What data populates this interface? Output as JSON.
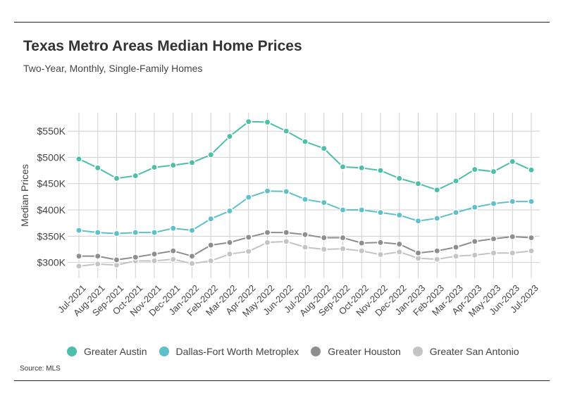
{
  "header": {
    "title": "Texas Metro Areas Median Home Prices",
    "subtitle": "Two-Year, Monthly, Single-Family Homes"
  },
  "footer": {
    "source": "Source: MLS"
  },
  "chart_data": {
    "type": "line",
    "ylabel": "Median Prices",
    "xlabel": "",
    "ylim": [
      270000,
      585000
    ],
    "y_ticks": [
      300000,
      350000,
      400000,
      450000,
      500000,
      550000
    ],
    "y_tick_labels": [
      "$300K",
      "$350K",
      "$400K",
      "$450K",
      "$500K",
      "$550K"
    ],
    "grid": true,
    "legend_position": "bottom",
    "categories": [
      "Jul-2021",
      "Aug-2021",
      "Sep-2021",
      "Oct-2021",
      "Nov-2021",
      "Dec-2021",
      "Jan-2022",
      "Feb-2022",
      "Mar-2022",
      "Apr-2022",
      "May-2022",
      "Jun-2022",
      "Jul-2022",
      "Aug-2022",
      "Sep-2022",
      "Oct-2022",
      "Nov-2022",
      "Dec-2022",
      "Jan-2023",
      "Feb-2023",
      "Mar-2023",
      "Apr-2023",
      "May-2023",
      "Jun-2023",
      "Jul-2023"
    ],
    "series": [
      {
        "name": "Greater Austin",
        "color": "#4dbfa8",
        "values": [
          497000,
          480000,
          460000,
          465000,
          481000,
          485000,
          490000,
          505000,
          540000,
          568000,
          567000,
          550000,
          530000,
          517000,
          482000,
          480000,
          475000,
          460000,
          450000,
          438000,
          455000,
          477000,
          473000,
          492000,
          476000
        ]
      },
      {
        "name": "Dallas-Fort Worth Metroplex",
        "color": "#5ec0cb",
        "values": [
          361000,
          357000,
          355000,
          357000,
          357000,
          365000,
          361000,
          383000,
          398000,
          424000,
          436000,
          435000,
          420000,
          414000,
          400000,
          400000,
          395000,
          390000,
          379000,
          384000,
          395000,
          405000,
          412000,
          416000,
          416000
        ]
      },
      {
        "name": "Greater Houston",
        "color": "#8e8e8e",
        "values": [
          312000,
          312000,
          305000,
          310000,
          316000,
          322000,
          312000,
          333000,
          338000,
          348000,
          357000,
          357000,
          353000,
          347000,
          347000,
          337000,
          338000,
          335000,
          318000,
          322000,
          329000,
          340000,
          345000,
          349000,
          347000
        ]
      },
      {
        "name": "Greater San Antonio",
        "color": "#c4c4c4",
        "values": [
          293000,
          297000,
          295000,
          303000,
          303000,
          306000,
          298000,
          303000,
          316000,
          321000,
          338000,
          340000,
          329000,
          325000,
          326000,
          322000,
          315000,
          320000,
          308000,
          306000,
          312000,
          314000,
          318000,
          318000,
          322000
        ]
      }
    ]
  }
}
